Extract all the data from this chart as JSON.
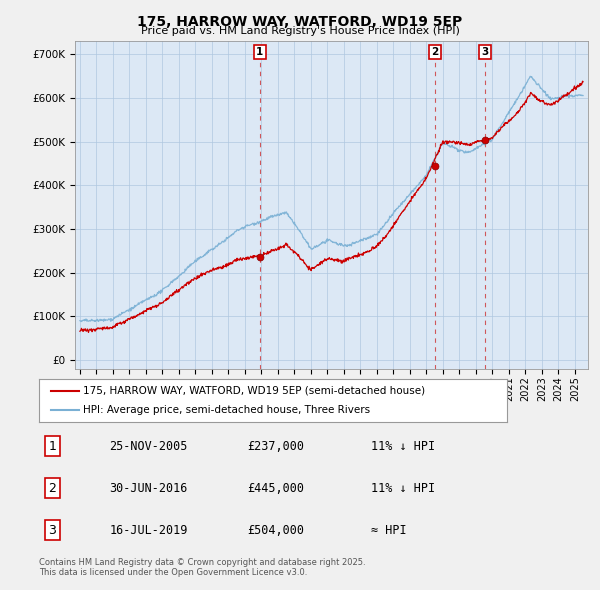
{
  "title": "175, HARROW WAY, WATFORD, WD19 5EP",
  "subtitle": "Price paid vs. HM Land Registry's House Price Index (HPI)",
  "ylabel_ticks": [
    "£0",
    "£100K",
    "£200K",
    "£300K",
    "£400K",
    "£500K",
    "£600K",
    "£700K"
  ],
  "ytick_vals": [
    0,
    100000,
    200000,
    300000,
    400000,
    500000,
    600000,
    700000
  ],
  "ylim": [
    -20000,
    730000
  ],
  "xlim_start": 1994.7,
  "xlim_end": 2025.8,
  "sale_dates": [
    2005.9,
    2016.5,
    2019.54
  ],
  "sale_prices": [
    237000,
    445000,
    504000
  ],
  "sale_labels": [
    "1",
    "2",
    "3"
  ],
  "vline_color": "#cc3333",
  "line_color_red": "#cc0000",
  "line_color_blue": "#7ab0d4",
  "plot_bg_fill": "#dce8f5",
  "legend_entries": [
    "175, HARROW WAY, WATFORD, WD19 5EP (semi-detached house)",
    "HPI: Average price, semi-detached house, Three Rivers"
  ],
  "table_data": [
    [
      "1",
      "25-NOV-2005",
      "£237,000",
      "11% ↓ HPI"
    ],
    [
      "2",
      "30-JUN-2016",
      "£445,000",
      "11% ↓ HPI"
    ],
    [
      "3",
      "16-JUL-2019",
      "£504,000",
      "≈ HPI"
    ]
  ],
  "footnote": "Contains HM Land Registry data © Crown copyright and database right 2025.\nThis data is licensed under the Open Government Licence v3.0.",
  "bg_color": "#f0f0f0",
  "plot_bg_color": "#dce8f5",
  "grid_color": "#b0c8e0"
}
